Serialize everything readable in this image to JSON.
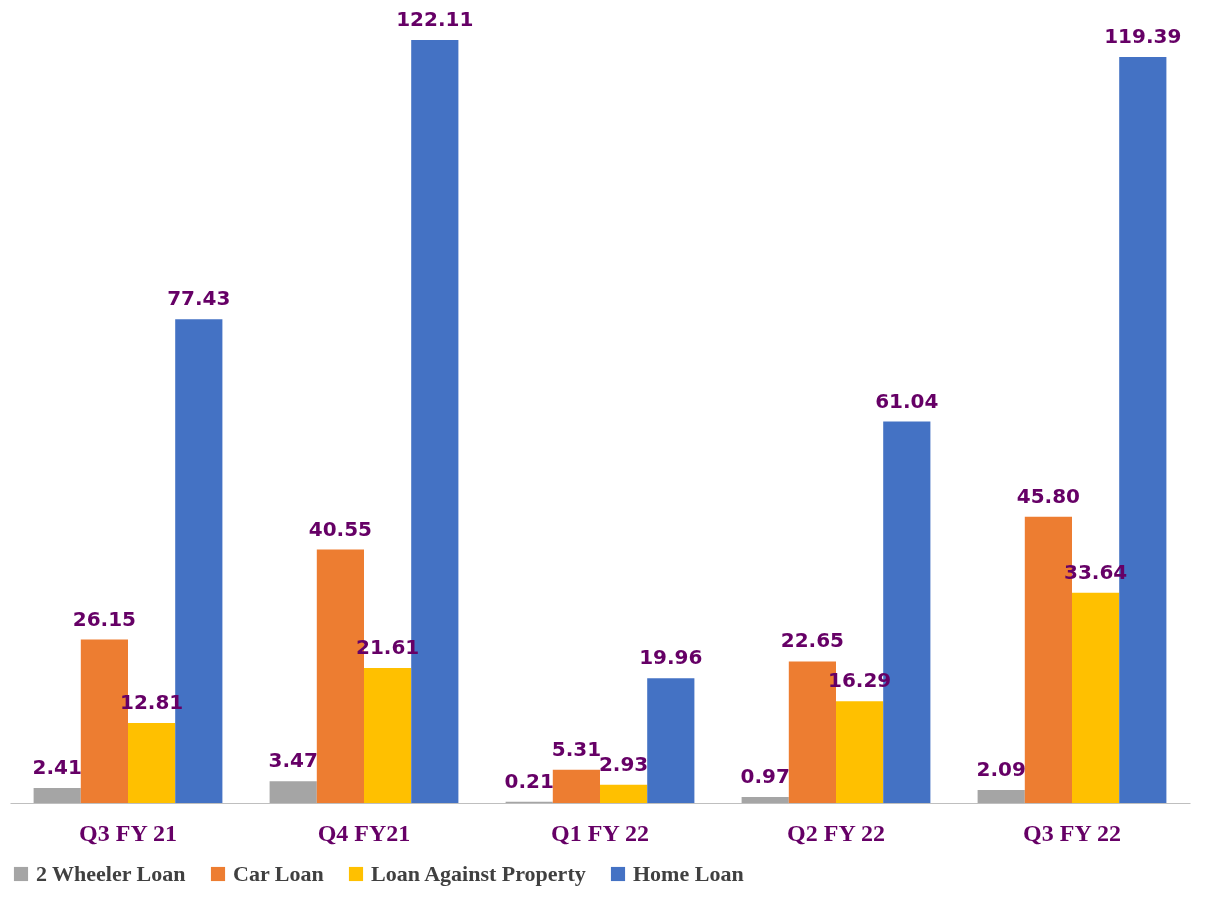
{
  "chart_data": {
    "type": "bar",
    "categories": [
      "Q3 FY 21",
      "Q4 FY21",
      "Q1 FY 22",
      "Q2 FY 22",
      "Q3 FY 22"
    ],
    "series": [
      {
        "name": "2 Wheeler Loan",
        "color": "#a5a5a5",
        "values": [
          2.41,
          3.47,
          0.21,
          0.97,
          2.09
        ],
        "value_labels": [
          "2.41",
          "3.47",
          "0.21",
          "0.97",
          "2.09"
        ]
      },
      {
        "name": "Car Loan",
        "color": "#ed7d31",
        "values": [
          26.15,
          40.55,
          5.31,
          22.65,
          45.8
        ],
        "value_labels": [
          "26.15",
          "40.55",
          "5.31",
          "22.65",
          "45.80"
        ]
      },
      {
        "name": "Loan Against Property",
        "color": "#ffc000",
        "values": [
          12.81,
          21.61,
          2.93,
          16.29,
          33.64
        ],
        "value_labels": [
          "12.81",
          "21.61",
          "2.93",
          "16.29",
          "33.64"
        ]
      },
      {
        "name": "Home Loan",
        "color": "#4472c4",
        "values": [
          77.43,
          122.11,
          19.96,
          61.04,
          119.39
        ],
        "value_labels": [
          "77.43",
          "122.11",
          "19.96",
          "61.04",
          "119.39"
        ]
      }
    ],
    "legend": "bottom",
    "grid": false,
    "tick_labels": "x"
  }
}
